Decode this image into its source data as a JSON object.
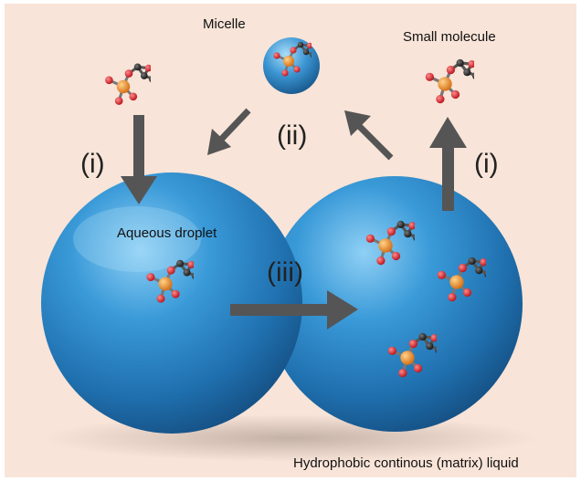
{
  "labels": {
    "micelle": "Micelle",
    "small_molecule": "Small molecule",
    "aqueous_droplet": "Aqueous droplet",
    "matrix_liquid": "Hydrophobic continous (matrix) liquid"
  },
  "steps": {
    "step_i_left": "(i)",
    "step_ii": "(ii)",
    "step_iii": "(iii)",
    "step_i_right": "(i)"
  },
  "colors": {
    "background": "#f8e4d8",
    "droplet": "#3a90cf",
    "arrow": "#555555",
    "oxygen_atom": "#d8202a",
    "phosphorus_atom": "#e8891c",
    "carbon_atom": "#2a2a2a"
  }
}
